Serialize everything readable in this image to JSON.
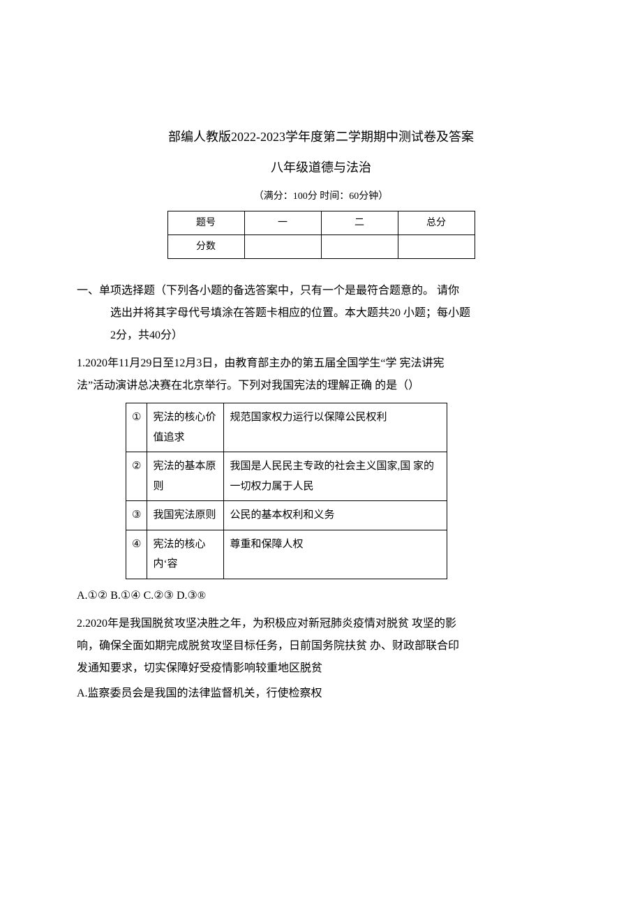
{
  "title": "部编人教版2022-2023学年度第二学期期中测试卷及答案",
  "subtitle": "八年级道德与法治",
  "exam_info": "（满分：100分 时间：60分钟）",
  "score_table": {
    "header_label": "题号",
    "col1": "一",
    "col2": "二",
    "col_total": "总分",
    "row2_label": "分数"
  },
  "section1": {
    "line1": "一、单项选择题（下列各小题的备选答案中，只有一个是最符合题意的。 请你",
    "line2": "选出并将其字母代号填涂在答题卡相应的位置。本大题共20 小题；每小题",
    "line3": "2分，共40分）"
  },
  "q1": {
    "line1": "1.2020年11月29日至12月3日，由教育部主办的第五届全国学生“学 宪法讲宪",
    "line2": "法”活动演讲总决赛在北京举行。下列对我国宪法的理解正确 的是（）"
  },
  "table1": {
    "rows": [
      {
        "idx": "①",
        "term": "宪法的核心价值追求",
        "desc": "规范国家权力运行以保障公民权利"
      },
      {
        "idx": "②",
        "term": "宪法的基本原则",
        "desc": "我国是人民民主专政的社会主义国家,国 家的一切权力属于人民"
      },
      {
        "idx": "③",
        "term": "我国宪法原则",
        "desc": "公民的基本权利和义务"
      },
      {
        "idx": "④",
        "term": "宪法的核心内‘容",
        "desc": "尊重和保障人权"
      }
    ]
  },
  "q1_options": "A.①② B.①④ C.②③ D.③®",
  "q2": {
    "line1": "2.2020年是我国脱贫攻坚决胜之年，为积极应对新冠肺炎疫情对脱贫 攻坚的影",
    "line2": "响，确保全面如期完成脱贫攻坚目标任务，日前国务院扶贫 办、财政部联合印",
    "line3": "发通知要求，切实保障好受疫情影响较重地区脱贫"
  },
  "q2_opt_a": "A.监察委员会是我国的法律监督机关，行使检察权"
}
